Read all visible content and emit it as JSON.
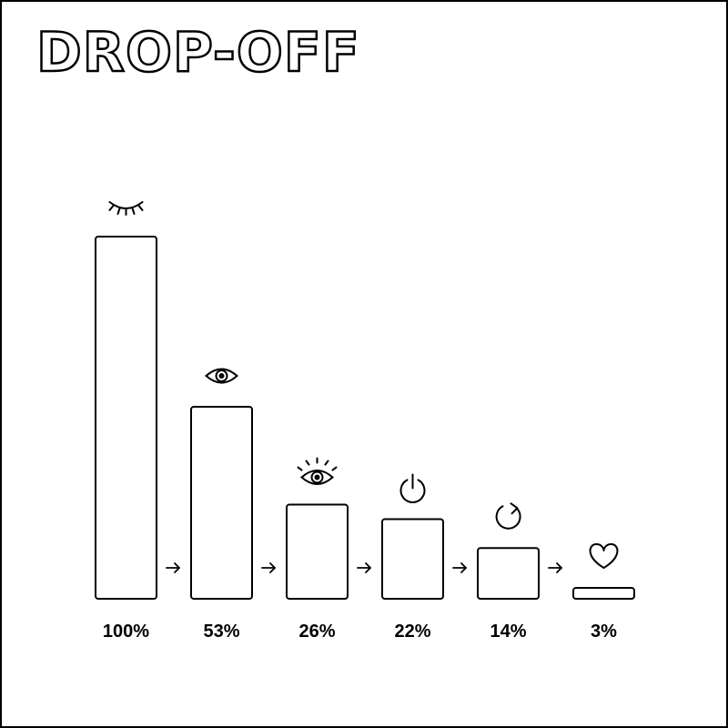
{
  "title": "DROP-OFF",
  "chart_data": {
    "type": "bar",
    "title": "DROP-OFF",
    "values": [
      100,
      53,
      26,
      22,
      14,
      3
    ],
    "labels": [
      "100%",
      "53%",
      "26%",
      "22%",
      "14%",
      "3%"
    ],
    "icons": [
      "closed-eye-icon",
      "eye-icon",
      "alert-eye-icon",
      "power-icon",
      "refresh-icon",
      "heart-icon"
    ],
    "ylim": [
      0,
      100
    ],
    "grid": false,
    "connector": "arrow",
    "colors": {
      "stroke": "#000000",
      "fill": "#ffffff"
    }
  }
}
